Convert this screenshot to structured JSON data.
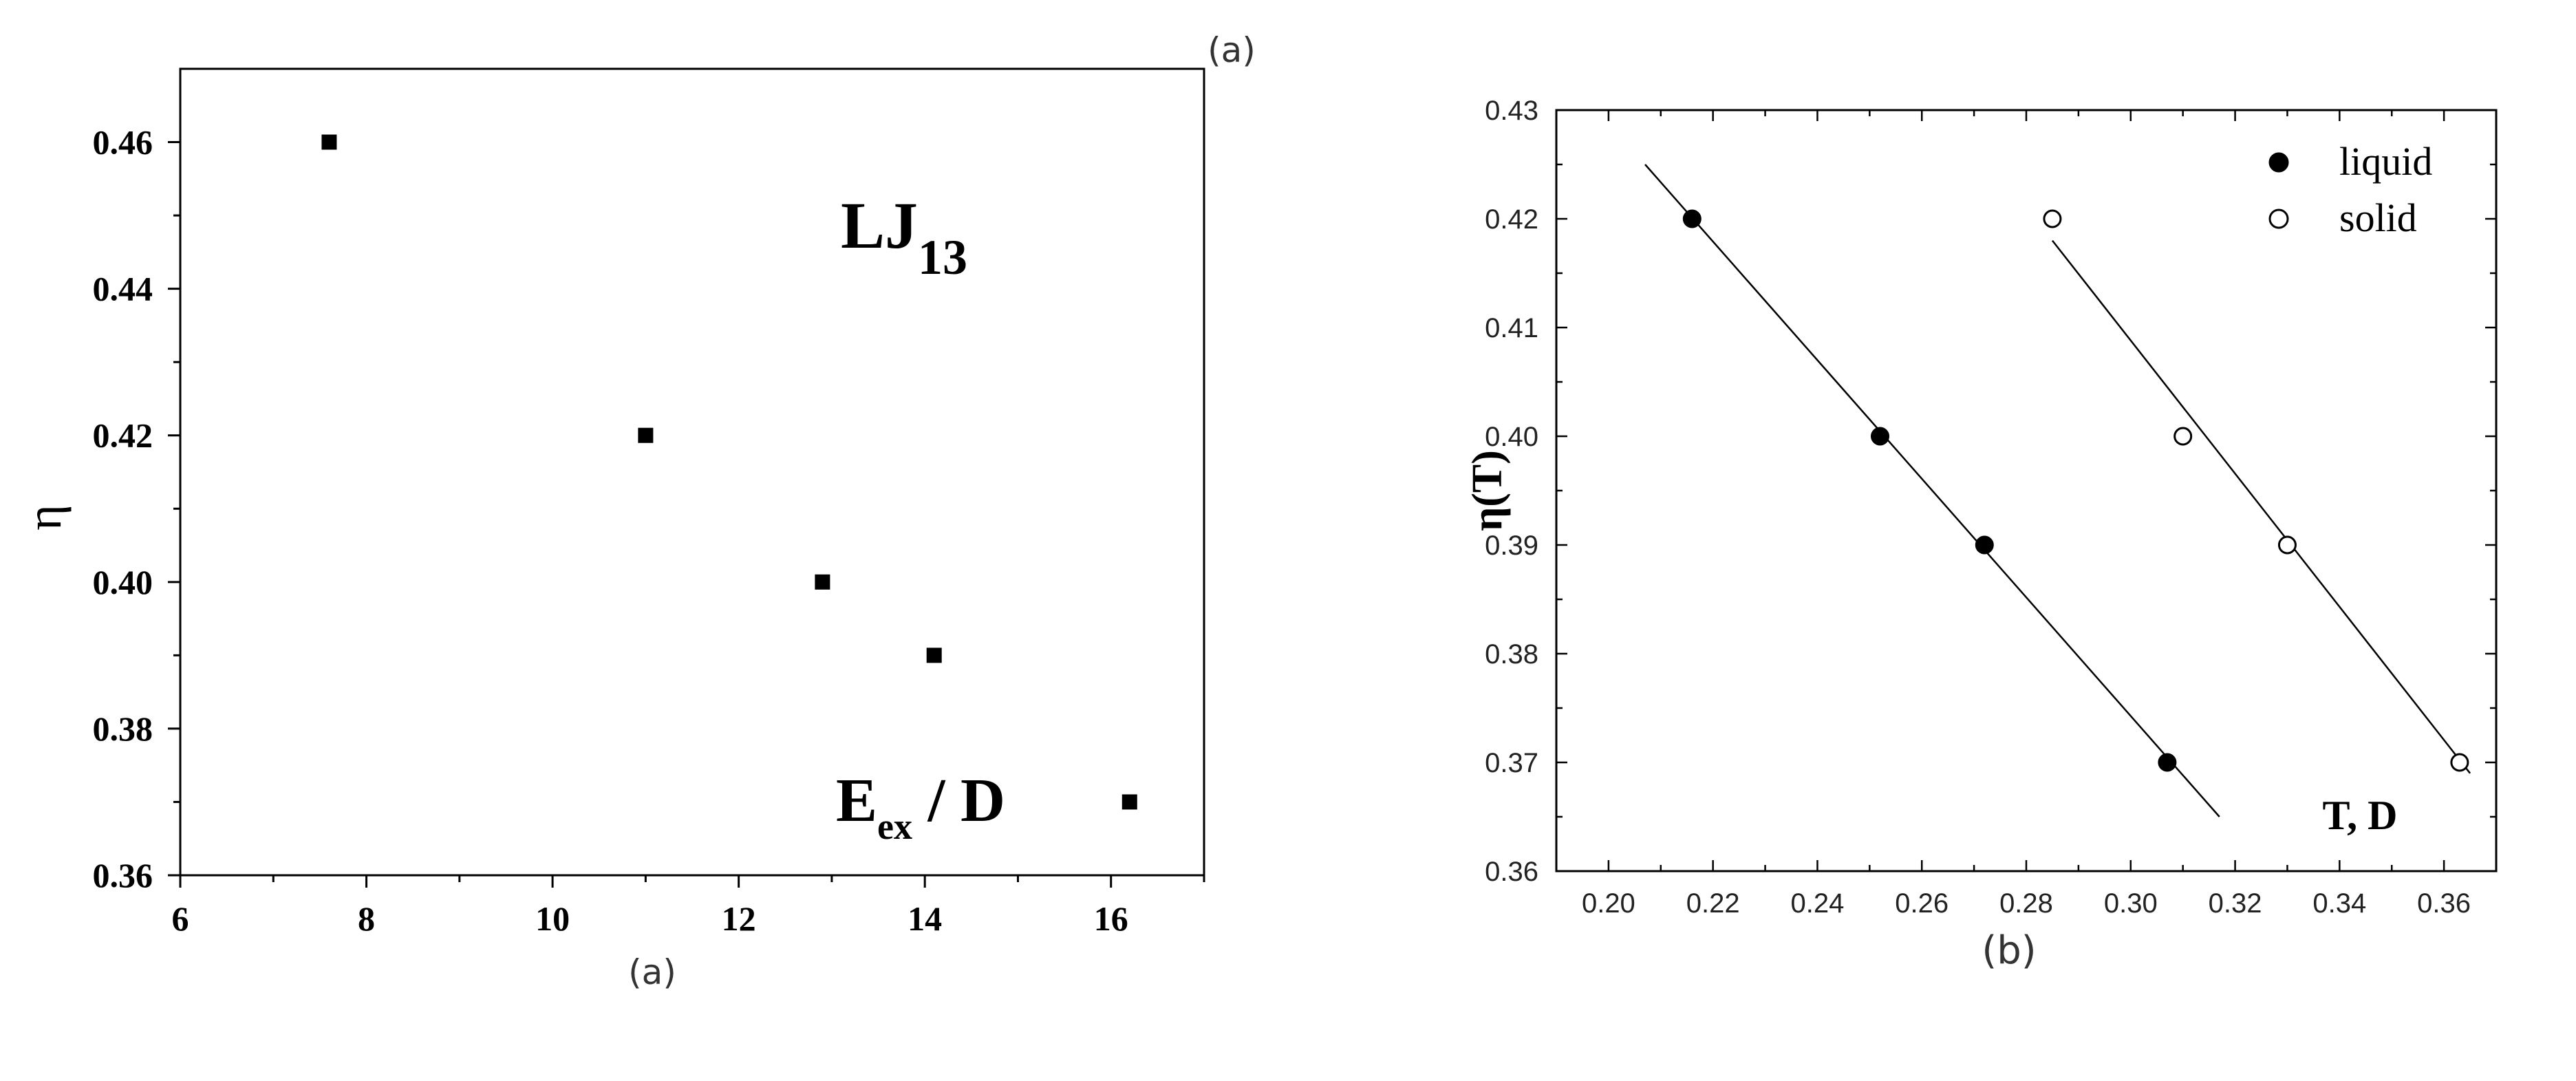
{
  "chart_data": [
    {
      "type": "scatter",
      "panel_caption": "(a)",
      "corner_label": "(a)",
      "ylabel": "η",
      "xlabel_main": "E",
      "xlabel_sub": "ex",
      "xlabel_rest": " / D",
      "annotation_main": "LJ",
      "annotation_sub": "13",
      "xlim": [
        6,
        17
      ],
      "ylim": [
        0.36,
        0.47
      ],
      "xticks": [
        "6",
        "8",
        "10",
        "12",
        "14",
        "16"
      ],
      "yticks": [
        "0.36",
        "0.38",
        "0.40",
        "0.42",
        "0.44",
        "0.46"
      ],
      "points": [
        {
          "x": 7.6,
          "y": 0.46
        },
        {
          "x": 11.0,
          "y": 0.42
        },
        {
          "x": 12.9,
          "y": 0.4
        },
        {
          "x": 14.1,
          "y": 0.39
        },
        {
          "x": 16.2,
          "y": 0.37
        }
      ]
    },
    {
      "type": "scatter",
      "panel_caption": "(b)",
      "ylabel": "η(T)",
      "xlabel": "T, D",
      "xlim": [
        0.19,
        0.37
      ],
      "ylim": [
        0.36,
        0.43
      ],
      "xticks": [
        "0.20",
        "0.22",
        "0.24",
        "0.26",
        "0.28",
        "0.30",
        "0.32",
        "0.34",
        "0.36"
      ],
      "yticks": [
        "0.36",
        "0.37",
        "0.38",
        "0.39",
        "0.40",
        "0.41",
        "0.42",
        "0.43"
      ],
      "series": [
        {
          "name": "liquid",
          "marker": "filled-circle",
          "points": [
            {
              "x": 0.216,
              "y": 0.42
            },
            {
              "x": 0.252,
              "y": 0.4
            },
            {
              "x": 0.272,
              "y": 0.39
            },
            {
              "x": 0.307,
              "y": 0.37
            }
          ],
          "fit_line": {
            "x": [
              0.207,
              0.317
            ],
            "y": [
              0.425,
              0.365
            ]
          }
        },
        {
          "name": "solid",
          "marker": "open-circle",
          "points": [
            {
              "x": 0.285,
              "y": 0.42
            },
            {
              "x": 0.31,
              "y": 0.4
            },
            {
              "x": 0.33,
              "y": 0.39
            },
            {
              "x": 0.363,
              "y": 0.37
            }
          ],
          "fit_line": {
            "x": [
              0.285,
              0.365
            ],
            "y": [
              0.418,
              0.369
            ]
          }
        }
      ]
    }
  ]
}
